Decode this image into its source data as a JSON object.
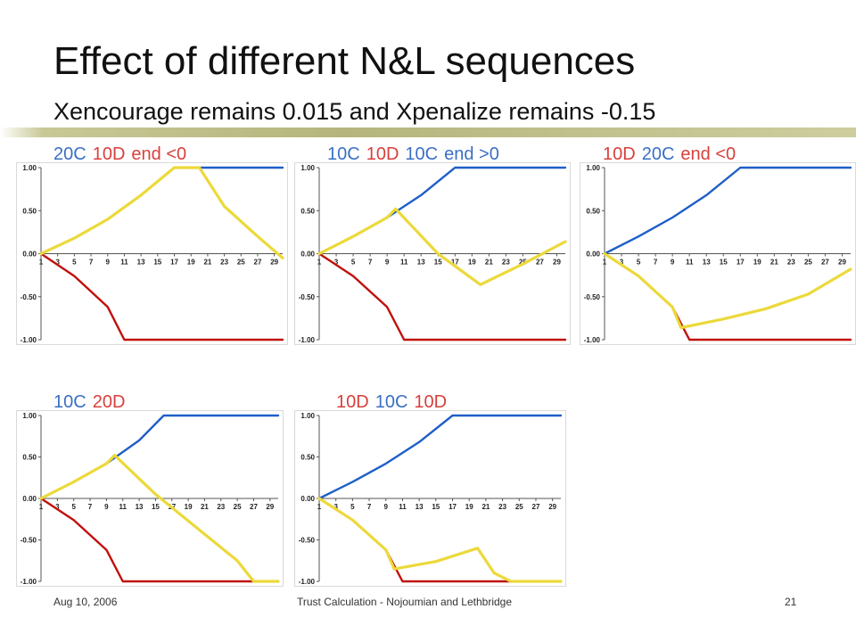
{
  "slide": {
    "title": "Effect of different N&L sequences",
    "subtitle": "Xencourage remains 0.015   and  Xpenalize remains -0.15",
    "footer_date": "Aug 10, 2006",
    "footer_center": "Trust Calculation - Nojoumian and Lethbridge",
    "footer_page": "21"
  },
  "colors": {
    "blue": "#1f5fc8",
    "red": "#c0100c",
    "yellow": "#ecd93a",
    "label_blue": "#3a6fc4",
    "label_red": "#d8403b"
  },
  "chart_data": [
    {
      "type": "line",
      "title_parts": [
        {
          "text": "20C",
          "color": "blue"
        },
        {
          "text": "10D",
          "color": "red"
        },
        {
          "text": "end <0",
          "color": "red"
        }
      ],
      "x_ticks": [
        "1",
        "3",
        "5",
        "7",
        "9",
        "11",
        "13",
        "15",
        "17",
        "19",
        "21",
        "23",
        "25",
        "27",
        "29"
      ],
      "y_ticks": [
        "1.00",
        "0.50",
        "0.00",
        "-0.50",
        "-1.00"
      ],
      "ylim": [
        -1,
        1
      ],
      "xlim": [
        1,
        30
      ],
      "series": [
        {
          "color": "blue",
          "points": [
            [
              1,
              0
            ],
            [
              5,
              0.18
            ],
            [
              9,
              0.4
            ],
            [
              13,
              0.68
            ],
            [
              17,
              1.0
            ],
            [
              30,
              1.0
            ]
          ]
        },
        {
          "color": "red",
          "points": [
            [
              1,
              0
            ],
            [
              5,
              -0.26
            ],
            [
              9,
              -0.62
            ],
            [
              11,
              -1.0
            ],
            [
              30,
              -1.0
            ]
          ]
        },
        {
          "color": "yellow",
          "points": [
            [
              1,
              0
            ],
            [
              5,
              0.18
            ],
            [
              9,
              0.4
            ],
            [
              13,
              0.68
            ],
            [
              17,
              1.0
            ],
            [
              20,
              1.0
            ],
            [
              23,
              0.55
            ],
            [
              27,
              0.2
            ],
            [
              30,
              -0.05
            ]
          ]
        }
      ]
    },
    {
      "type": "line",
      "title_parts": [
        {
          "text": "10C",
          "color": "blue"
        },
        {
          "text": "10D",
          "color": "red"
        },
        {
          "text": "10C",
          "color": "blue"
        },
        {
          "text": "end >0",
          "color": "blue"
        }
      ],
      "x_ticks": [
        "1",
        "3",
        "5",
        "7",
        "9",
        "11",
        "13",
        "15",
        "17",
        "19",
        "21",
        "23",
        "25",
        "27",
        "29"
      ],
      "y_ticks": [
        "1.00",
        "0.50",
        "0.00",
        "-0.50",
        "-1.00"
      ],
      "ylim": [
        -1,
        1
      ],
      "xlim": [
        1,
        30
      ],
      "series": [
        {
          "color": "blue",
          "points": [
            [
              1,
              0
            ],
            [
              5,
              0.2
            ],
            [
              9,
              0.42
            ],
            [
              13,
              0.68
            ],
            [
              17,
              1.0
            ],
            [
              30,
              1.0
            ]
          ]
        },
        {
          "color": "red",
          "points": [
            [
              1,
              0
            ],
            [
              5,
              -0.26
            ],
            [
              9,
              -0.62
            ],
            [
              11,
              -1.0
            ],
            [
              30,
              -1.0
            ]
          ]
        },
        {
          "color": "yellow",
          "points": [
            [
              1,
              0
            ],
            [
              5,
              0.2
            ],
            [
              9,
              0.42
            ],
            [
              10,
              0.52
            ],
            [
              15,
              0.0
            ],
            [
              20,
              -0.36
            ],
            [
              25,
              -0.12
            ],
            [
              30,
              0.14
            ]
          ]
        }
      ]
    },
    {
      "type": "line",
      "title_parts": [
        {
          "text": "10D",
          "color": "red"
        },
        {
          "text": "20C",
          "color": "blue"
        },
        {
          "text": "end <0",
          "color": "red"
        }
      ],
      "x_ticks": [
        "1",
        "3",
        "5",
        "7",
        "9",
        "11",
        "13",
        "15",
        "17",
        "19",
        "21",
        "23",
        "25",
        "27",
        "29"
      ],
      "y_ticks": [
        "1.00",
        "0.50",
        "0.00",
        "-0.50",
        "-1.00"
      ],
      "ylim": [
        -1,
        1
      ],
      "xlim": [
        1,
        30
      ],
      "series": [
        {
          "color": "blue",
          "points": [
            [
              1,
              0
            ],
            [
              5,
              0.2
            ],
            [
              9,
              0.42
            ],
            [
              13,
              0.68
            ],
            [
              17,
              1.0
            ],
            [
              30,
              1.0
            ]
          ]
        },
        {
          "color": "red",
          "points": [
            [
              1,
              0
            ],
            [
              5,
              -0.26
            ],
            [
              9,
              -0.62
            ],
            [
              11,
              -1.0
            ],
            [
              30,
              -1.0
            ]
          ]
        },
        {
          "color": "yellow",
          "points": [
            [
              1,
              0
            ],
            [
              5,
              -0.26
            ],
            [
              9,
              -0.62
            ],
            [
              10,
              -0.86
            ],
            [
              15,
              -0.76
            ],
            [
              20,
              -0.64
            ],
            [
              25,
              -0.47
            ],
            [
              30,
              -0.18
            ]
          ]
        }
      ]
    },
    {
      "type": "line",
      "title_parts": [
        {
          "text": "10C",
          "color": "blue"
        },
        {
          "text": "20D",
          "color": "red"
        }
      ],
      "x_ticks": [
        "1",
        "3",
        "5",
        "7",
        "9",
        "11",
        "13",
        "15",
        "17",
        "19",
        "21",
        "23",
        "25",
        "27",
        "29"
      ],
      "y_ticks": [
        "1.00",
        "0.50",
        "0.00",
        "-0.50",
        "-1.00"
      ],
      "ylim": [
        -1,
        1
      ],
      "xlim": [
        1,
        30
      ],
      "series": [
        {
          "color": "blue",
          "points": [
            [
              1,
              0
            ],
            [
              5,
              0.2
            ],
            [
              9,
              0.42
            ],
            [
              13,
              0.7
            ],
            [
              16,
              1.0
            ],
            [
              30,
              1.0
            ]
          ]
        },
        {
          "color": "red",
          "points": [
            [
              1,
              0
            ],
            [
              5,
              -0.26
            ],
            [
              9,
              -0.62
            ],
            [
              11,
              -1.0
            ],
            [
              30,
              -1.0
            ]
          ]
        },
        {
          "color": "yellow",
          "points": [
            [
              1,
              0
            ],
            [
              5,
              0.2
            ],
            [
              9,
              0.42
            ],
            [
              10,
              0.52
            ],
            [
              15,
              0.05
            ],
            [
              20,
              -0.35
            ],
            [
              25,
              -0.75
            ],
            [
              27,
              -1.0
            ],
            [
              30,
              -1.0
            ]
          ]
        }
      ]
    },
    {
      "type": "line",
      "title_parts": [
        {
          "text": "10D",
          "color": "red"
        },
        {
          "text": "10C",
          "color": "blue"
        },
        {
          "text": "10D",
          "color": "red"
        }
      ],
      "x_ticks": [
        "1",
        "3",
        "5",
        "7",
        "9",
        "11",
        "13",
        "15",
        "17",
        "19",
        "21",
        "23",
        "25",
        "27",
        "29"
      ],
      "y_ticks": [
        "1.00",
        "0.50",
        "0.00",
        "-0.50",
        "-1.00"
      ],
      "ylim": [
        -1,
        1
      ],
      "xlim": [
        1,
        30
      ],
      "series": [
        {
          "color": "blue",
          "points": [
            [
              1,
              0
            ],
            [
              5,
              0.2
            ],
            [
              9,
              0.42
            ],
            [
              13,
              0.68
            ],
            [
              17,
              1.0
            ],
            [
              30,
              1.0
            ]
          ]
        },
        {
          "color": "red",
          "points": [
            [
              1,
              0
            ],
            [
              5,
              -0.26
            ],
            [
              9,
              -0.62
            ],
            [
              11,
              -1.0
            ],
            [
              30,
              -1.0
            ]
          ]
        },
        {
          "color": "yellow",
          "points": [
            [
              1,
              0
            ],
            [
              5,
              -0.26
            ],
            [
              9,
              -0.62
            ],
            [
              10,
              -0.85
            ],
            [
              15,
              -0.76
            ],
            [
              20,
              -0.6
            ],
            [
              22,
              -0.9
            ],
            [
              24,
              -1.0
            ],
            [
              30,
              -1.0
            ]
          ]
        }
      ]
    }
  ]
}
